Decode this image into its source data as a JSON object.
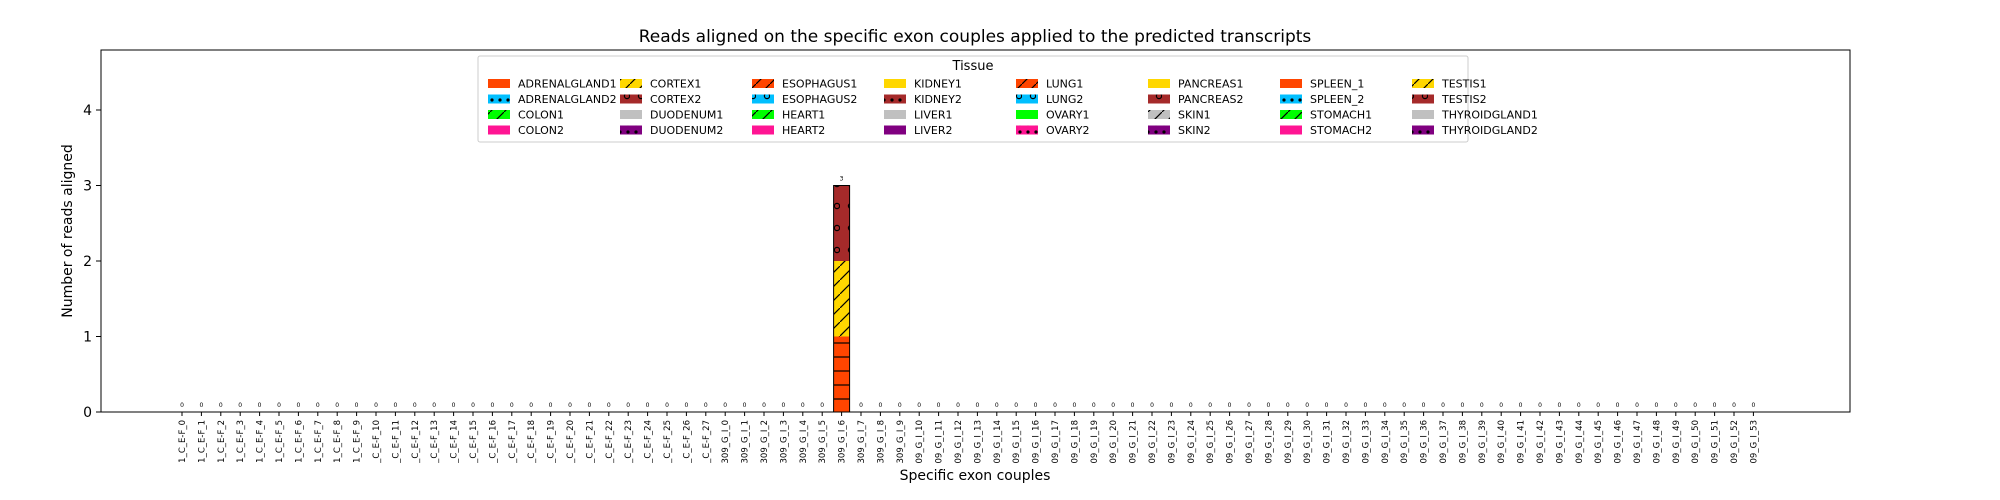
{
  "chart_data": {
    "type": "bar",
    "stacked": true,
    "title": "Reads aligned on the specific exon couples applied to the predicted transcripts",
    "xlabel": "Specific exon couples",
    "ylabel": "Number of reads aligned",
    "ylim": [
      0,
      4.85
    ],
    "yticks": [
      0,
      1,
      2,
      3,
      4
    ],
    "grid": false,
    "legend_title": "Tissue",
    "legend_position": "top-center",
    "categories": [
      "1_C_E-F_0",
      "1_C_E-F_1",
      "1_C_E-F_2",
      "1_C_E-F_3",
      "1_C_E-F_4",
      "1_C_E-F_5",
      "1_C_E-F_6",
      "1_C_E-F_7",
      "1_C_E-F_8",
      "1_C_E-F_9",
      "_C_E-F_10",
      "_C_E-F_11",
      "_C_E-F_12",
      "_C_E-F_13",
      "_C_E-F_14",
      "_C_E-F_15",
      "_C_E-F_16",
      "_C_E-F_17",
      "_C_E-F_18",
      "_C_E-F_19",
      "_C_E-F_20",
      "_C_E-F_21",
      "_C_E-F_22",
      "_C_E-F_23",
      "_C_E-F_24",
      "_C_E-F_25",
      "_C_E-F_26",
      "_C_E-F_27",
      "309_G_I_0",
      "309_G_I_1",
      "309_G_I_2",
      "309_G_I_3",
      "309_G_I_4",
      "309_G_I_5",
      "309_G_I_6",
      "309_G_I_7",
      "309_G_I_8",
      "309_G_I_9",
      "09_G_I_10",
      "09_G_I_11",
      "09_G_I_12",
      "09_G_I_13",
      "09_G_I_14",
      "09_G_I_15",
      "09_G_I_16",
      "09_G_I_17",
      "09_G_I_18",
      "09_G_I_19",
      "09_G_I_20",
      "09_G_I_21",
      "09_G_I_22",
      "09_G_I_23",
      "09_G_I_24",
      "09_G_I_25",
      "09_G_I_26",
      "09_G_I_27",
      "09_G_I_28",
      "09_G_I_29",
      "09_G_I_30",
      "09_G_I_31",
      "09_G_I_32",
      "09_G_I_33",
      "09_G_I_34",
      "09_G_I_35",
      "09_G_I_36",
      "09_G_I_37",
      "09_G_I_38",
      "09_G_I_39",
      "09_G_I_40",
      "09_G_I_41",
      "09_G_I_42",
      "09_G_I_43",
      "09_G_I_44",
      "09_G_I_45",
      "09_G_I_46",
      "09_G_I_47",
      "09_G_I_48",
      "09_G_I_49",
      "09_G_I_50",
      "09_G_I_51",
      "09_G_I_52",
      "09_G_I_53"
    ],
    "totals": [
      0,
      0,
      0,
      0,
      0,
      0,
      0,
      0,
      0,
      0,
      0,
      0,
      0,
      0,
      0,
      0,
      0,
      0,
      0,
      0,
      0,
      0,
      0,
      0,
      0,
      0,
      0,
      0,
      0,
      0,
      0,
      0,
      0,
      0,
      3,
      0,
      0,
      0,
      0,
      0,
      0,
      0,
      0,
      0,
      0,
      0,
      0,
      0,
      0,
      0,
      0,
      0,
      0,
      0,
      0,
      0,
      0,
      0,
      0,
      0,
      0,
      0,
      0,
      0,
      0,
      0,
      0,
      0,
      0,
      0,
      0,
      0,
      0,
      0,
      0,
      0,
      0,
      0,
      0,
      0,
      0,
      0
    ],
    "series": [
      {
        "name": "ADRENALGLAND1",
        "color": "#ff4500",
        "hatch": "none"
      },
      {
        "name": "ADRENALGLAND2",
        "color": "#00bfff",
        "hatch": "dot"
      },
      {
        "name": "COLON1",
        "color": "#00ff00",
        "hatch": "slash"
      },
      {
        "name": "COLON2",
        "color": "#ff1493",
        "hatch": "circle"
      },
      {
        "name": "CORTEX1",
        "color": "#ffd700",
        "hatch": "slash"
      },
      {
        "name": "CORTEX2",
        "color": "#a52a2a",
        "hatch": "circle"
      },
      {
        "name": "DUODENUM1",
        "color": "#c0c0c0",
        "hatch": "none"
      },
      {
        "name": "DUODENUM2",
        "color": "#800080",
        "hatch": "dot"
      },
      {
        "name": "ESOPHAGUS1",
        "color": "#ff4500",
        "hatch": "slash"
      },
      {
        "name": "ESOPHAGUS2",
        "color": "#00bfff",
        "hatch": "circle"
      },
      {
        "name": "HEART1",
        "color": "#00ff00",
        "hatch": "slash"
      },
      {
        "name": "HEART2",
        "color": "#ff1493",
        "hatch": "circle"
      },
      {
        "name": "KIDNEY1",
        "color": "#ffd700",
        "hatch": "none"
      },
      {
        "name": "KIDNEY2",
        "color": "#a52a2a",
        "hatch": "dot"
      },
      {
        "name": "LIVER1",
        "color": "#c0c0c0",
        "hatch": "none"
      },
      {
        "name": "LIVER2",
        "color": "#800080",
        "hatch": "circle"
      },
      {
        "name": "LUNG1",
        "color": "#ff4500",
        "hatch": "slash"
      },
      {
        "name": "LUNG2",
        "color": "#00bfff",
        "hatch": "circle"
      },
      {
        "name": "OVARY1",
        "color": "#00ff00",
        "hatch": "none"
      },
      {
        "name": "OVARY2",
        "color": "#ff1493",
        "hatch": "dot"
      },
      {
        "name": "PANCREAS1",
        "color": "#ffd700",
        "hatch": "none"
      },
      {
        "name": "PANCREAS2",
        "color": "#a52a2a",
        "hatch": "circle"
      },
      {
        "name": "SKIN1",
        "color": "#c0c0c0",
        "hatch": "slash"
      },
      {
        "name": "SKIN2",
        "color": "#800080",
        "hatch": "dot"
      },
      {
        "name": "SPLEEN_1",
        "color": "#ff4500",
        "hatch": "none"
      },
      {
        "name": "SPLEEN_2",
        "color": "#00bfff",
        "hatch": "dot"
      },
      {
        "name": "STOMACH1",
        "color": "#00ff00",
        "hatch": "slash"
      },
      {
        "name": "STOMACH2",
        "color": "#ff1493",
        "hatch": "circle"
      },
      {
        "name": "TESTIS1",
        "color": "#ffd700",
        "hatch": "slash"
      },
      {
        "name": "TESTIS2",
        "color": "#a52a2a",
        "hatch": "circle"
      },
      {
        "name": "THYROIDGLAND1",
        "color": "#c0c0c0",
        "hatch": "none"
      },
      {
        "name": "THYROIDGLAND2",
        "color": "#800080",
        "hatch": "dot"
      }
    ],
    "stacks": [
      {
        "category": "309_G_I_6",
        "segments": [
          {
            "series": "ADRENALGLAND1",
            "value": 1,
            "color": "#ff4500",
            "hatch": "hline"
          },
          {
            "series": "CORTEX1",
            "value": 1,
            "color": "#ffd700",
            "hatch": "slash"
          },
          {
            "series": "CORTEX2",
            "value": 1,
            "color": "#a52a2a",
            "hatch": "circle"
          }
        ]
      }
    ]
  }
}
